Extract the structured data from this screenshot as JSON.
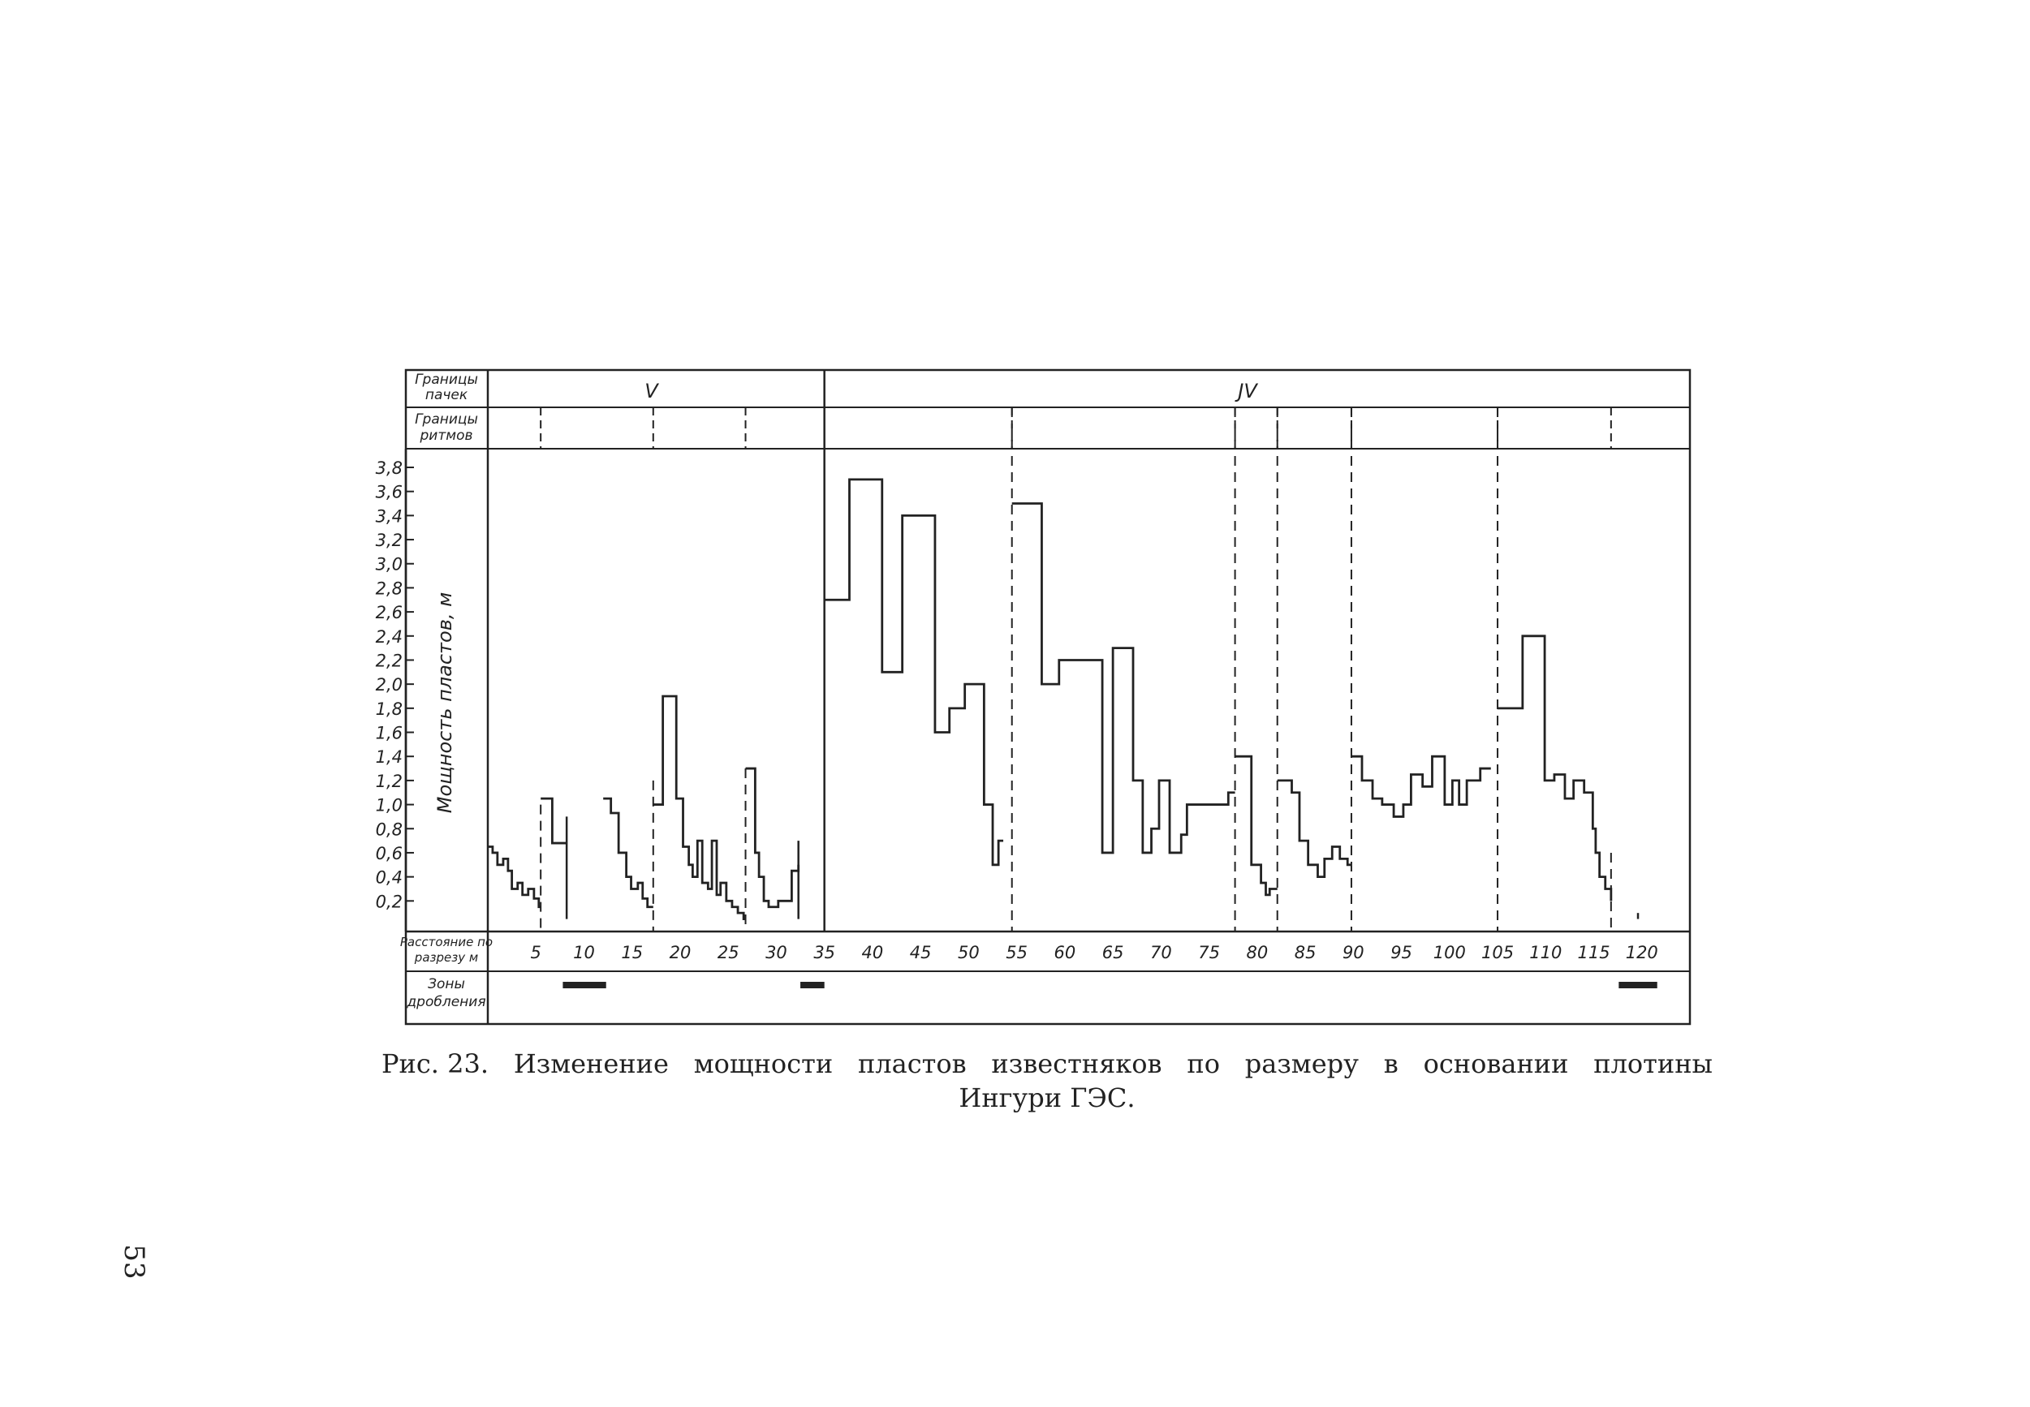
{
  "figure": {
    "row_headers": {
      "packs": "Границы пачек",
      "rhythms": "Границы ритмов",
      "distance": "Расстояние по разрезу м",
      "zones": "Зоны дробления"
    },
    "pack_labels": [
      {
        "label": "V",
        "x": 17
      },
      {
        "label": "JV",
        "x": 79
      }
    ],
    "pack_boundary_x": [
      35
    ],
    "caption_line1": [
      "Рис. 23.",
      "Изменение",
      "мощности",
      "пластов",
      "известняков",
      "по",
      "размеру",
      "в",
      "основании",
      "плотины"
    ],
    "caption_line2": "Ингури ГЭС.",
    "page_number": "53"
  },
  "chart_data": {
    "type": "line",
    "step": true,
    "title": "",
    "xlabel": "Расстояние по разрезу м",
    "ylabel": "Мощность пластов, м",
    "xlim": [
      0,
      125
    ],
    "ylim": [
      0,
      3.8
    ],
    "x_ticks": [
      5,
      10,
      15,
      20,
      25,
      30,
      35,
      40,
      45,
      50,
      55,
      60,
      65,
      70,
      75,
      80,
      85,
      90,
      95,
      100,
      105,
      110,
      115,
      120
    ],
    "x_tick_labels": [
      "5",
      "10",
      "15",
      "20",
      "25",
      "30",
      "35",
      "40",
      "45",
      "50",
      "55",
      "60",
      "65",
      "70",
      "75",
      "80",
      "85",
      "90",
      "95",
      "100",
      "105",
      "110",
      "115",
      "120"
    ],
    "y_ticks": [
      0.2,
      0.4,
      0.6,
      0.8,
      1.0,
      1.2,
      1.4,
      1.6,
      1.8,
      2.0,
      2.2,
      2.4,
      2.6,
      2.8,
      3.0,
      3.2,
      3.4,
      3.6,
      3.8
    ],
    "y_tick_labels": [
      "0,2",
      "0,4",
      "0,6",
      "0,8",
      "1,0",
      "1,2",
      "1,4",
      "1,6",
      "1,8",
      "2,0",
      "2,2",
      "2,4",
      "2,6",
      "2,8",
      "3,0",
      "3,2",
      "3,4",
      "3,6",
      "3,8"
    ],
    "rhythm_boundaries": [
      5.5,
      17.2,
      26.8,
      54.5,
      77.7,
      82.1,
      89.8,
      105,
      116.8
    ],
    "rhythm_boundary_tops": [
      1.0,
      1.2,
      1.3,
      3.8,
      3.8,
      3.8,
      3.8,
      3.8,
      0.6
    ],
    "series": [
      {
        "steps": [
          [
            0,
            0.65
          ],
          [
            0.5,
            0.6
          ],
          [
            1,
            0.5
          ],
          [
            1.6,
            0.55
          ],
          [
            2.1,
            0.45
          ],
          [
            2.5,
            0.3
          ],
          [
            3.1,
            0.35
          ],
          [
            3.6,
            0.25
          ],
          [
            4.2,
            0.3
          ],
          [
            4.8,
            0.22
          ],
          [
            5.3,
            0.15
          ],
          [
            5.5,
            0.15
          ]
        ]
      },
      {
        "steps": [
          [
            5.5,
            1.05
          ],
          [
            6.7,
            0.68
          ],
          [
            8.2,
            0.68
          ]
        ]
      },
      {
        "steps": [
          [
            8.2,
            0.9
          ]
        ]
      },
      {
        "steps": [
          [
            12,
            1.05
          ],
          [
            12.8,
            0.93
          ],
          [
            13.6,
            0.6
          ],
          [
            14.4,
            0.4
          ],
          [
            14.9,
            0.3
          ],
          [
            15.6,
            0.35
          ],
          [
            16.1,
            0.22
          ],
          [
            16.6,
            0.15
          ],
          [
            17.2,
            0.15
          ]
        ]
      },
      {
        "steps": [
          [
            17.2,
            1.0
          ],
          [
            18.2,
            1.9
          ],
          [
            19.6,
            1.05
          ],
          [
            20.3,
            0.65
          ],
          [
            20.9,
            0.5
          ],
          [
            21.3,
            0.4
          ],
          [
            21.8,
            0.7
          ],
          [
            22.3,
            0.35
          ],
          [
            22.9,
            0.3
          ],
          [
            23.3,
            0.7
          ],
          [
            23.8,
            0.25
          ],
          [
            24.2,
            0.35
          ],
          [
            24.8,
            0.2
          ],
          [
            25.4,
            0.15
          ],
          [
            26,
            0.1
          ],
          [
            26.6,
            0.05
          ],
          [
            26.8,
            0.05
          ]
        ]
      },
      {
        "steps": [
          [
            26.8,
            1.3
          ],
          [
            27.8,
            0.6
          ],
          [
            28.2,
            0.4
          ],
          [
            28.7,
            0.2
          ],
          [
            29.2,
            0.15
          ],
          [
            30.2,
            0.2
          ],
          [
            31.2,
            0.2
          ],
          [
            31.6,
            0.45
          ],
          [
            32.3,
            0.5
          ]
        ]
      },
      {
        "steps": [
          [
            32.3,
            0.7
          ]
        ]
      },
      {
        "steps": [
          [
            35,
            2.7
          ],
          [
            37.6,
            3.7
          ],
          [
            41,
            2.1
          ],
          [
            43.1,
            3.4
          ],
          [
            46.5,
            1.6
          ],
          [
            48,
            1.8
          ],
          [
            49.6,
            2.0
          ],
          [
            51.6,
            1.0
          ],
          [
            52.5,
            0.5
          ],
          [
            53.1,
            0.7
          ],
          [
            53.6,
            0.7
          ]
        ]
      },
      {
        "steps": [
          [
            54.5,
            3.5
          ],
          [
            57.6,
            2.0
          ],
          [
            59.4,
            2.2
          ],
          [
            63.9,
            0.6
          ],
          [
            65,
            2.3
          ],
          [
            67.1,
            1.2
          ],
          [
            68.1,
            0.6
          ],
          [
            69,
            0.8
          ],
          [
            69.8,
            1.2
          ],
          [
            70.9,
            0.6
          ],
          [
            72.1,
            0.75
          ],
          [
            72.7,
            1.0
          ],
          [
            77,
            1.1
          ],
          [
            77.7,
            1.1
          ]
        ]
      },
      {
        "steps": [
          [
            77.7,
            1.4
          ],
          [
            79.4,
            0.5
          ],
          [
            80.4,
            0.35
          ],
          [
            80.9,
            0.25
          ],
          [
            81.3,
            0.3
          ],
          [
            82.1,
            0.3
          ]
        ]
      },
      {
        "steps": [
          [
            82.1,
            1.2
          ],
          [
            83.6,
            1.1
          ],
          [
            84.4,
            0.7
          ],
          [
            85.3,
            0.5
          ],
          [
            86.3,
            0.4
          ],
          [
            87,
            0.55
          ],
          [
            87.8,
            0.65
          ],
          [
            88.6,
            0.55
          ],
          [
            89.4,
            0.5
          ],
          [
            89.8,
            0.5
          ]
        ]
      },
      {
        "steps": [
          [
            89.8,
            1.4
          ],
          [
            90.9,
            1.2
          ],
          [
            92,
            1.05
          ],
          [
            93,
            1.0
          ],
          [
            94.2,
            0.9
          ],
          [
            95.2,
            1.0
          ],
          [
            96,
            1.25
          ],
          [
            97.2,
            1.15
          ],
          [
            98.2,
            1.4
          ],
          [
            99.5,
            1.0
          ],
          [
            100.3,
            1.2
          ],
          [
            101,
            1.0
          ],
          [
            101.8,
            1.2
          ],
          [
            103.2,
            1.3
          ],
          [
            104.3,
            1.3
          ]
        ]
      },
      {
        "steps": [
          [
            105,
            1.8
          ],
          [
            107.6,
            2.4
          ],
          [
            109.9,
            1.2
          ],
          [
            110.9,
            1.25
          ],
          [
            112,
            1.05
          ],
          [
            112.9,
            1.2
          ],
          [
            114,
            1.1
          ],
          [
            114.9,
            0.8
          ],
          [
            115.2,
            0.6
          ],
          [
            115.6,
            0.4
          ],
          [
            116.2,
            0.3
          ],
          [
            116.8,
            0.2
          ]
        ]
      },
      {
        "steps": [
          [
            119.6,
            0.1
          ]
        ]
      }
    ],
    "crush_zones": [
      [
        7.8,
        12.3
      ],
      [
        32.5,
        35
      ],
      [
        117.6,
        121.6
      ]
    ]
  }
}
